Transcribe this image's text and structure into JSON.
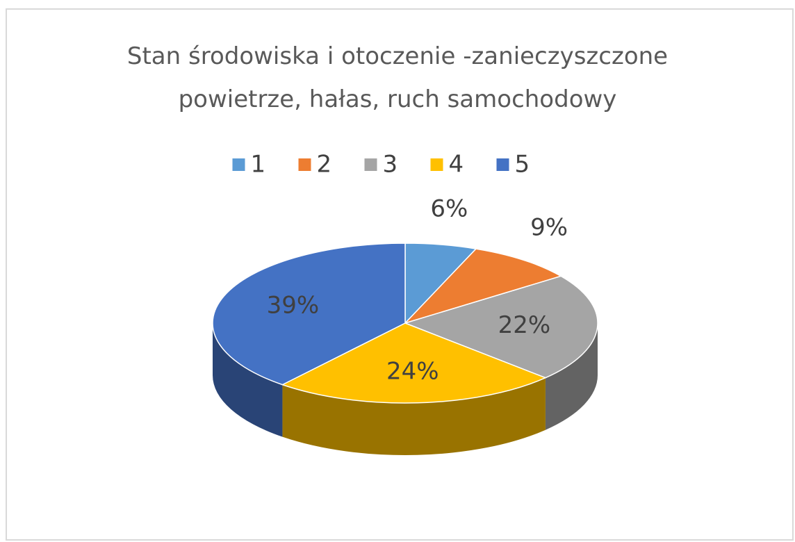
{
  "chart_data": {
    "type": "pie",
    "title": "Stan środowiska i otoczenie -zanieczyszczone powietrze, hałas, ruch samochodowy",
    "categories": [
      "1",
      "2",
      "3",
      "4",
      "5"
    ],
    "values": [
      6,
      9,
      22,
      24,
      39
    ],
    "value_labels": [
      "6%",
      "9%",
      "22%",
      "24%",
      "39%"
    ],
    "colors": [
      "#5b9bd5",
      "#ed7d31",
      "#a5a5a5",
      "#ffc000",
      "#4472c4"
    ],
    "legend": "top"
  }
}
